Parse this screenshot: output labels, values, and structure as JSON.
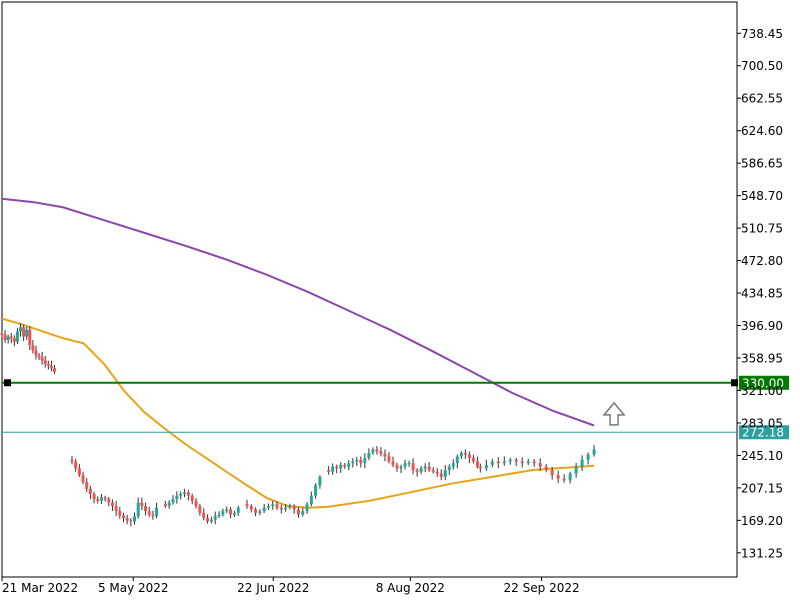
{
  "chart_data": {
    "type": "candlestick",
    "y_ticks": [
      738.45,
      700.5,
      662.55,
      624.6,
      586.65,
      548.7,
      510.75,
      472.8,
      434.85,
      396.9,
      358.95,
      321.0,
      283.05,
      245.1,
      207.15,
      169.2,
      131.25
    ],
    "y_tick_labels": [
      "738.45",
      "700.50",
      "662.55",
      "624.60",
      "586.65",
      "548.70",
      "510.75",
      "472.80",
      "434.85",
      "396.90",
      "358.95",
      "321.00",
      "283.05",
      "245.10",
      "207.15",
      "169.20",
      "131.25"
    ],
    "ylim": [
      103,
      775
    ],
    "x_axis": {
      "dates": [
        "2022-03-21",
        "2022-05-05",
        "2022-06-22",
        "2022-08-08",
        "2022-09-22"
      ],
      "labels": [
        "21 Mar 2022",
        "5 May 2022",
        "22 Jun 2022",
        "8 Aug 2022",
        "22 Sep 2022"
      ],
      "end_date": "2022-10-10",
      "xlim": [
        "2022-03-21",
        "2022-11-28"
      ]
    },
    "grid": false,
    "horizontal_levels": [
      {
        "value": 330.0,
        "label": "330.00",
        "color": "#007a00"
      },
      {
        "value": 272.18,
        "label": "272.18",
        "color": "#2aa0a0"
      }
    ],
    "candles": {
      "up_color": "#26a69a",
      "down_color": "#ef5350",
      "segments": [
        {
          "start": "2022-03-21",
          "end": "2022-04-08",
          "y": [
            386,
            380,
            384,
            382,
            378,
            390,
            395,
            384,
            392,
            374,
            368,
            362,
            360,
            356,
            352,
            350,
            347,
            343
          ]
        },
        {
          "start": "2022-04-14",
          "end": "2022-05-13",
          "y": [
            238,
            230,
            222,
            214,
            206,
            200,
            194,
            192,
            196,
            194,
            190,
            186,
            180,
            175,
            172,
            169,
            168,
            174,
            190,
            186,
            180,
            176,
            174,
            184
          ]
        },
        {
          "start": "2022-05-16",
          "end": "2022-06-10",
          "y": [
            186,
            190,
            194,
            198,
            200,
            202,
            198,
            192,
            186,
            178,
            172,
            168,
            170,
            174,
            176,
            180,
            182,
            176,
            178,
            184
          ]
        },
        {
          "start": "2022-06-13",
          "end": "2022-07-08",
          "y": [
            186,
            182,
            178,
            180,
            184,
            186,
            188,
            184,
            182,
            184,
            186,
            182,
            176,
            180,
            188,
            198,
            210,
            220
          ]
        },
        {
          "start": "2022-07-11",
          "end": "2022-08-31",
          "y": [
            226,
            232,
            230,
            234,
            232,
            236,
            238,
            240,
            236,
            242,
            248,
            252,
            250,
            247,
            244,
            238,
            234,
            230,
            232,
            236,
            236,
            228,
            226,
            230,
            232,
            228,
            226,
            224,
            220,
            228,
            232,
            236,
            244,
            248,
            246,
            242,
            238,
            232
          ]
        },
        {
          "start": "2022-09-01",
          "end": "2022-10-10",
          "y": [
            230,
            234,
            238,
            236,
            238,
            240,
            238,
            236,
            238,
            236,
            232,
            228,
            222,
            218,
            216,
            224,
            232,
            240,
            246,
            252
          ]
        }
      ]
    },
    "moving_averages": [
      {
        "color": "#e8a318",
        "points": [
          [
            "2022-03-21",
            405
          ],
          [
            "2022-03-28",
            398
          ],
          [
            "2022-04-04",
            390
          ],
          [
            "2022-04-11",
            382
          ],
          [
            "2022-04-18",
            376
          ],
          [
            "2022-04-25",
            352
          ],
          [
            "2022-05-02",
            320
          ],
          [
            "2022-05-09",
            295
          ],
          [
            "2022-05-16",
            276
          ],
          [
            "2022-05-23",
            258
          ],
          [
            "2022-05-30",
            242
          ],
          [
            "2022-06-06",
            226
          ],
          [
            "2022-06-13",
            210
          ],
          [
            "2022-06-20",
            195
          ],
          [
            "2022-06-27",
            186
          ],
          [
            "2022-07-04",
            184
          ],
          [
            "2022-07-11",
            185
          ],
          [
            "2022-07-25",
            192
          ],
          [
            "2022-08-08",
            202
          ],
          [
            "2022-08-22",
            212
          ],
          [
            "2022-09-05",
            220
          ],
          [
            "2022-09-19",
            228
          ],
          [
            "2022-10-10",
            233
          ]
        ]
      },
      {
        "color": "#8e44ad",
        "points": [
          [
            "2022-03-21",
            545
          ],
          [
            "2022-04-01",
            541
          ],
          [
            "2022-04-11",
            535
          ],
          [
            "2022-04-25",
            520
          ],
          [
            "2022-05-09",
            505
          ],
          [
            "2022-05-23",
            490
          ],
          [
            "2022-06-06",
            474
          ],
          [
            "2022-06-20",
            456
          ],
          [
            "2022-07-04",
            436
          ],
          [
            "2022-07-18",
            414
          ],
          [
            "2022-08-01",
            392
          ],
          [
            "2022-08-15",
            368
          ],
          [
            "2022-08-29",
            343
          ],
          [
            "2022-09-12",
            318
          ],
          [
            "2022-09-26",
            297
          ],
          [
            "2022-10-10",
            280
          ]
        ]
      }
    ],
    "signal_arrow": {
      "direction": "up",
      "color": "#777777"
    }
  }
}
